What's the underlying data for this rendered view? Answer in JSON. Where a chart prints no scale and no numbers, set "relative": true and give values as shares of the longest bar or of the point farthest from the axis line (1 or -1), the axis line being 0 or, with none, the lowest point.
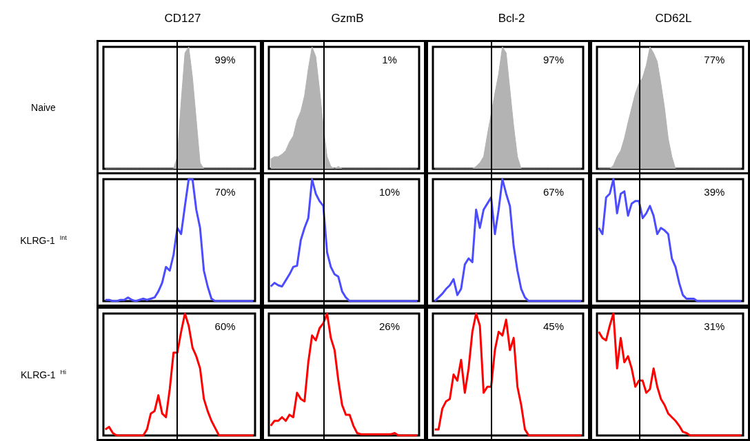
{
  "chart_data": [
    {
      "type": "area",
      "title": "CD127",
      "ylabel": "Naive",
      "relative": true,
      "color": "#b3b3b3",
      "annotations": [
        "99%"
      ],
      "categories": [
        null,
        null,
        null,
        null,
        null,
        null,
        null,
        null,
        null,
        null,
        null,
        null,
        null,
        null,
        null,
        null,
        null,
        null,
        null,
        null,
        null,
        null,
        null,
        null,
        null,
        null,
        null,
        null,
        null,
        null,
        null,
        null,
        null,
        null,
        null,
        null,
        null,
        null,
        null,
        null
      ],
      "values": [
        0,
        0,
        0,
        0,
        0,
        0,
        0,
        0,
        0,
        0,
        0,
        0,
        0,
        0,
        0,
        0,
        0,
        0,
        0,
        0.1,
        0.55,
        0.95,
        1,
        0.75,
        0.4,
        0.05,
        0,
        0,
        0,
        0,
        0,
        0,
        0,
        0,
        0,
        0,
        0,
        0,
        0,
        0
      ]
    },
    {
      "type": "area",
      "title": "GzmB",
      "relative": true,
      "color": "#b3b3b3",
      "annotations": [
        "1%"
      ],
      "categories": [
        null,
        null,
        null,
        null,
        null,
        null,
        null,
        null,
        null,
        null,
        null,
        null,
        null,
        null,
        null,
        null,
        null,
        null,
        null,
        null,
        null,
        null,
        null,
        null,
        null,
        null,
        null,
        null,
        null,
        null,
        null,
        null,
        null,
        null,
        null,
        null,
        null,
        null,
        null,
        null
      ],
      "values": [
        0.08,
        0.1,
        0.1,
        0.12,
        0.15,
        0.22,
        0.27,
        0.4,
        0.47,
        0.6,
        0.82,
        1,
        0.92,
        0.65,
        0.35,
        0.1,
        0.02,
        0,
        0.02,
        0,
        0,
        0,
        0,
        0,
        0,
        0,
        0,
        0,
        0,
        0,
        0,
        0,
        0,
        0,
        0,
        0,
        0,
        0,
        0,
        0
      ]
    },
    {
      "type": "area",
      "title": "Bcl-2",
      "relative": true,
      "color": "#b3b3b3",
      "annotations": [
        "97%"
      ],
      "categories": [
        null,
        null,
        null,
        null,
        null,
        null,
        null,
        null,
        null,
        null,
        null,
        null,
        null,
        null,
        null,
        null,
        null,
        null,
        null,
        null,
        null,
        null,
        null,
        null,
        null,
        null,
        null,
        null,
        null,
        null,
        null,
        null,
        null,
        null,
        null,
        null,
        null,
        null,
        null,
        null
      ],
      "values": [
        0,
        0,
        0,
        0,
        0,
        0,
        0,
        0,
        0,
        0,
        0,
        0.02,
        0.05,
        0.1,
        0.28,
        0.45,
        0.62,
        0.78,
        1,
        0.95,
        0.65,
        0.35,
        0.1,
        0,
        0,
        0,
        0,
        0,
        0,
        0,
        0,
        0,
        0,
        0,
        0,
        0,
        0,
        0,
        0,
        0
      ]
    },
    {
      "type": "area",
      "title": "CD62L",
      "relative": true,
      "color": "#b3b3b3",
      "annotations": [
        "77%"
      ],
      "categories": [
        null,
        null,
        null,
        null,
        null,
        null,
        null,
        null,
        null,
        null,
        null,
        null,
        null,
        null,
        null,
        null,
        null,
        null,
        null,
        null,
        null,
        null,
        null,
        null,
        null,
        null,
        null,
        null,
        null,
        null,
        null,
        null,
        null,
        null,
        null,
        null,
        null,
        null,
        null,
        null
      ],
      "values": [
        0,
        0,
        0,
        0,
        0.03,
        0.1,
        0.15,
        0.25,
        0.38,
        0.5,
        0.62,
        0.7,
        0.75,
        0.85,
        1,
        0.95,
        0.88,
        0.7,
        0.5,
        0.25,
        0.1,
        0,
        0,
        0,
        0,
        0,
        0,
        0,
        0,
        0,
        0,
        0,
        0,
        0,
        0,
        0,
        0,
        0,
        0,
        0
      ]
    },
    {
      "type": "line",
      "ylabel": "KLRG-1 $^{Int}$",
      "relative": true,
      "color": "#4c4cff",
      "annotations": [
        "70%"
      ],
      "categories": [
        null,
        null,
        null,
        null,
        null,
        null,
        null,
        null,
        null,
        null,
        null,
        null,
        null,
        null,
        null,
        null,
        null,
        null,
        null,
        null,
        null,
        null,
        null,
        null,
        null,
        null,
        null,
        null,
        null,
        null,
        null,
        null,
        null,
        null,
        null,
        null,
        null,
        null,
        null,
        null
      ],
      "values": [
        0.01,
        0.01,
        0,
        0,
        0.01,
        0.01,
        0.03,
        0.01,
        0,
        0.01,
        0.02,
        0.01,
        0.02,
        0.03,
        0.08,
        0.15,
        0.28,
        0.25,
        0.38,
        0.6,
        0.55,
        0.78,
        1,
        1,
        0.75,
        0.6,
        0.25,
        0.12,
        0.02,
        0,
        0,
        0,
        0,
        0,
        0,
        0,
        0,
        0,
        0,
        0
      ]
    },
    {
      "type": "line",
      "relative": true,
      "color": "#4c4cff",
      "annotations": [
        "10%"
      ],
      "categories": [
        null,
        null,
        null,
        null,
        null,
        null,
        null,
        null,
        null,
        null,
        null,
        null,
        null,
        null,
        null,
        null,
        null,
        null,
        null,
        null,
        null,
        null,
        null,
        null,
        null,
        null,
        null,
        null,
        null,
        null,
        null,
        null,
        null,
        null,
        null,
        null,
        null,
        null,
        null,
        null
      ],
      "values": [
        0.12,
        0.15,
        0.13,
        0.12,
        0.17,
        0.22,
        0.28,
        0.29,
        0.5,
        0.6,
        0.68,
        1,
        0.88,
        0.82,
        0.78,
        0.4,
        0.28,
        0.22,
        0.2,
        0.08,
        0.03,
        0,
        0,
        0,
        0,
        0,
        0,
        0,
        0,
        0,
        0,
        0,
        0,
        0,
        0,
        0,
        0,
        0,
        0,
        0
      ]
    },
    {
      "type": "line",
      "relative": true,
      "color": "#4c4cff",
      "annotations": [
        "67%"
      ],
      "categories": [
        null,
        null,
        null,
        null,
        null,
        null,
        null,
        null,
        null,
        null,
        null,
        null,
        null,
        null,
        null,
        null,
        null,
        null,
        null,
        null,
        null,
        null,
        null,
        null,
        null,
        null,
        null,
        null,
        null,
        null,
        null,
        null,
        null,
        null,
        null,
        null,
        null,
        null,
        null,
        null
      ],
      "values": [
        0,
        0.03,
        0.06,
        0.1,
        0.13,
        0.18,
        0.05,
        0.1,
        0.3,
        0.35,
        0.32,
        0.75,
        0.6,
        0.75,
        0.8,
        0.85,
        0.55,
        0.75,
        1,
        0.88,
        0.78,
        0.45,
        0.25,
        0.1,
        0.03,
        0,
        0,
        0,
        0,
        0,
        0,
        0,
        0,
        0,
        0,
        0,
        0,
        0,
        0,
        0
      ]
    },
    {
      "type": "line",
      "relative": true,
      "color": "#4c4cff",
      "annotations": [
        "39%"
      ],
      "categories": [
        null,
        null,
        null,
        null,
        null,
        null,
        null,
        null,
        null,
        null,
        null,
        null,
        null,
        null,
        null,
        null,
        null,
        null,
        null,
        null,
        null,
        null,
        null,
        null,
        null,
        null,
        null,
        null,
        null,
        null,
        null,
        null,
        null,
        null,
        null,
        null,
        null,
        null,
        null,
        null
      ],
      "values": [
        0.6,
        0.55,
        0.85,
        0.88,
        1,
        0.72,
        0.88,
        0.9,
        0.7,
        0.8,
        0.82,
        0.82,
        0.68,
        0.72,
        0.78,
        0.7,
        0.55,
        0.6,
        0.58,
        0.55,
        0.35,
        0.28,
        0.15,
        0.05,
        0.02,
        0.02,
        0.02,
        0,
        0,
        0,
        0,
        0,
        0,
        0,
        0,
        0,
        0,
        0,
        0,
        0
      ]
    },
    {
      "type": "line",
      "ylabel": "KLRG-1 $^{Hi}$",
      "relative": true,
      "color": "#ff0000",
      "annotations": [
        "60%"
      ],
      "categories": [
        null,
        null,
        null,
        null,
        null,
        null,
        null,
        null,
        null,
        null,
        null,
        null,
        null,
        null,
        null,
        null,
        null,
        null,
        null,
        null,
        null,
        null,
        null,
        null,
        null,
        null,
        null,
        null,
        null,
        null,
        null,
        null,
        null,
        null,
        null,
        null,
        null,
        null,
        null,
        null
      ],
      "values": [
        0.05,
        0.07,
        0.02,
        0,
        0,
        0,
        0,
        0,
        0,
        0,
        0,
        0.05,
        0.18,
        0.2,
        0.33,
        0.18,
        0.15,
        0.38,
        0.68,
        0.68,
        0.85,
        1,
        0.9,
        0.72,
        0.65,
        0.55,
        0.3,
        0.2,
        0.12,
        0.06,
        0,
        0,
        0,
        0,
        0,
        0,
        0,
        0,
        0,
        0
      ]
    },
    {
      "type": "line",
      "relative": true,
      "color": "#ff0000",
      "annotations": [
        "26%"
      ],
      "categories": [
        null,
        null,
        null,
        null,
        null,
        null,
        null,
        null,
        null,
        null,
        null,
        null,
        null,
        null,
        null,
        null,
        null,
        null,
        null,
        null,
        null,
        null,
        null,
        null,
        null,
        null,
        null,
        null,
        null,
        null,
        null,
        null,
        null,
        null,
        null,
        null,
        null,
        null,
        null,
        null
      ],
      "values": [
        0.08,
        0.12,
        0.12,
        0.15,
        0.12,
        0.17,
        0.15,
        0.35,
        0.3,
        0.28,
        0.6,
        0.82,
        0.78,
        0.88,
        0.92,
        1,
        0.8,
        0.7,
        0.45,
        0.25,
        0.17,
        0.17,
        0.08,
        0.02,
        0.01,
        0.01,
        0.01,
        0.01,
        0.01,
        0.01,
        0.01,
        0.01,
        0.01,
        0.02,
        0,
        0,
        0,
        0,
        0,
        0
      ]
    },
    {
      "type": "line",
      "relative": true,
      "color": "#ff0000",
      "annotations": [
        "45%"
      ],
      "categories": [
        null,
        null,
        null,
        null,
        null,
        null,
        null,
        null,
        null,
        null,
        null,
        null,
        null,
        null,
        null,
        null,
        null,
        null,
        null,
        null,
        null,
        null,
        null,
        null,
        null,
        null,
        null,
        null,
        null,
        null,
        null,
        null,
        null,
        null,
        null,
        null,
        null,
        null,
        null,
        null
      ],
      "values": [
        0.05,
        0.05,
        0.22,
        0.28,
        0.3,
        0.5,
        0.45,
        0.62,
        0.35,
        0.55,
        0.85,
        1,
        0.9,
        0.35,
        0.4,
        0.4,
        0.7,
        0.85,
        0.82,
        0.95,
        0.7,
        0.8,
        0.4,
        0.25,
        0.05,
        0,
        0,
        0,
        0,
        0,
        0,
        0,
        0,
        0,
        0,
        0,
        0,
        0,
        0,
        0
      ]
    },
    {
      "type": "line",
      "relative": true,
      "color": "#ff0000",
      "annotations": [
        "31%"
      ],
      "categories": [
        null,
        null,
        null,
        null,
        null,
        null,
        null,
        null,
        null,
        null,
        null,
        null,
        null,
        null,
        null,
        null,
        null,
        null,
        null,
        null,
        null,
        null,
        null,
        null,
        null,
        null,
        null,
        null,
        null,
        null,
        null,
        null,
        null,
        null,
        null,
        null,
        null,
        null,
        null,
        null
      ],
      "values": [
        0.85,
        0.8,
        0.78,
        0.9,
        1,
        0.55,
        0.8,
        0.6,
        0.65,
        0.55,
        0.4,
        0.45,
        0.45,
        0.35,
        0.38,
        0.55,
        0.4,
        0.3,
        0.25,
        0.18,
        0.15,
        0.12,
        0.08,
        0.03,
        0.02,
        0,
        0,
        0,
        0,
        0,
        0,
        0,
        0,
        0,
        0,
        0,
        0,
        0,
        0,
        0
      ]
    }
  ]
}
